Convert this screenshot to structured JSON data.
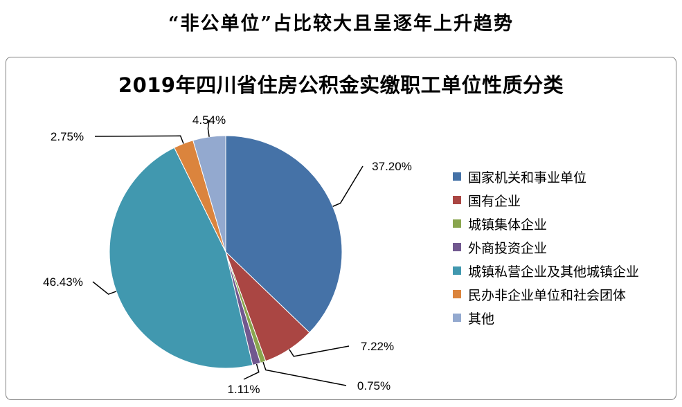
{
  "headline": "“非公单位”占比较大且呈逐年上升趋势",
  "chart_data": {
    "type": "pie",
    "title": "2019年四川省住房公积金实缴职工单位性质分类",
    "legend_position": "right",
    "slices": [
      {
        "name": "国家机关和事业单位",
        "value": 37.2,
        "label": "37.20%",
        "color": "#4572A7"
      },
      {
        "name": "国有企业",
        "value": 7.22,
        "label": "7.22%",
        "color": "#AA4643"
      },
      {
        "name": "城镇集体企业",
        "value": 0.75,
        "label": "0.75%",
        "color": "#89A54E"
      },
      {
        "name": "外商投资企业",
        "value": 1.11,
        "label": "1.11%",
        "color": "#71588F"
      },
      {
        "name": "城镇私营企业及其他城镇企业",
        "value": 46.43,
        "label": "46.43%",
        "color": "#4198AF"
      },
      {
        "name": "民办非企业单位和社会团体",
        "value": 2.75,
        "label": "2.75%",
        "color": "#DB843D"
      },
      {
        "name": "其他",
        "value": 4.54,
        "label": "4.54%",
        "color": "#93A9CF"
      }
    ]
  }
}
